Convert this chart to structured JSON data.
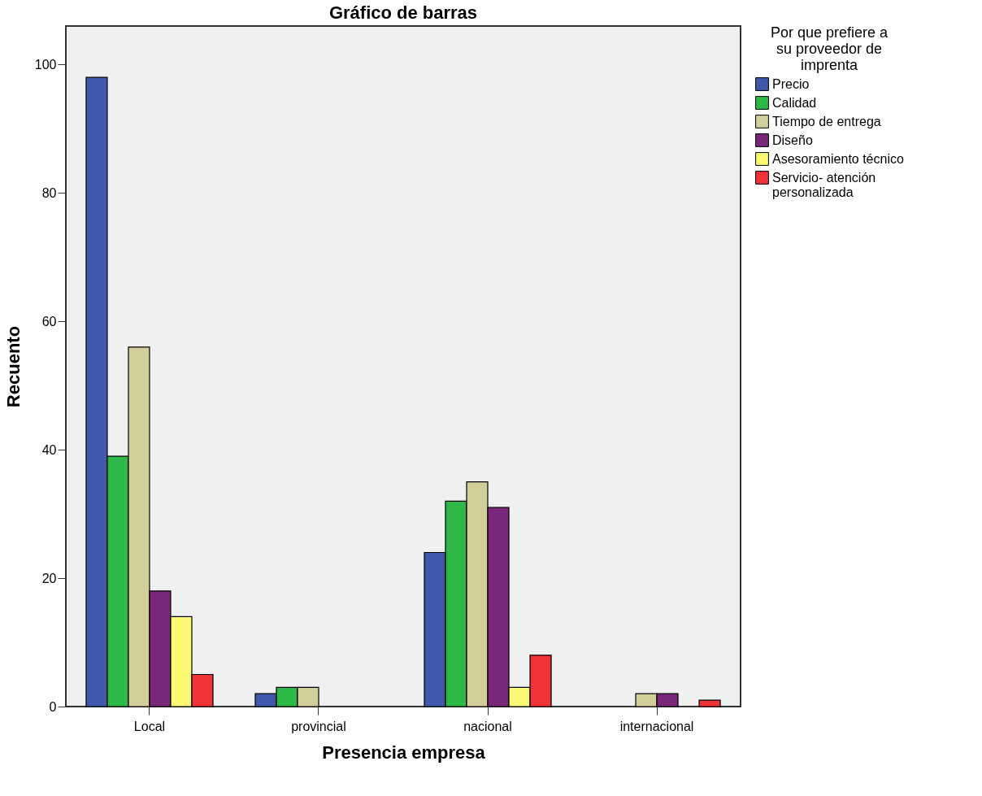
{
  "chart_data": {
    "type": "bar",
    "title": "Gráfico de barras",
    "xlabel": "Presencia empresa",
    "ylabel": "Recuento",
    "legend_title": "Por que prefiere a su proveedor de imprenta",
    "legend": "right",
    "grid": false,
    "categories": [
      "Local",
      "provincial",
      "nacional",
      "internacional"
    ],
    "ylim": [
      0,
      106
    ],
    "yticks": [
      0,
      20,
      40,
      60,
      80,
      100
    ],
    "series": [
      {
        "name": "Precio",
        "color": "#3e58ac",
        "values": [
          98,
          2,
          24,
          null
        ]
      },
      {
        "name": "Calidad",
        "color": "#2eb848",
        "values": [
          39,
          3,
          32,
          null
        ]
      },
      {
        "name": "Tiempo de entrega",
        "color": "#d2ce9a",
        "values": [
          56,
          3,
          35,
          2
        ]
      },
      {
        "name": "Diseño",
        "color": "#7a267b",
        "values": [
          18,
          null,
          31,
          2
        ]
      },
      {
        "name": "Asesoramiento técnico",
        "color": "#fbf873",
        "values": [
          14,
          null,
          3,
          null
        ]
      },
      {
        "name": "Servicio- atención personalizada",
        "color": "#ef3338",
        "values": [
          5,
          null,
          8,
          1
        ]
      }
    ]
  }
}
